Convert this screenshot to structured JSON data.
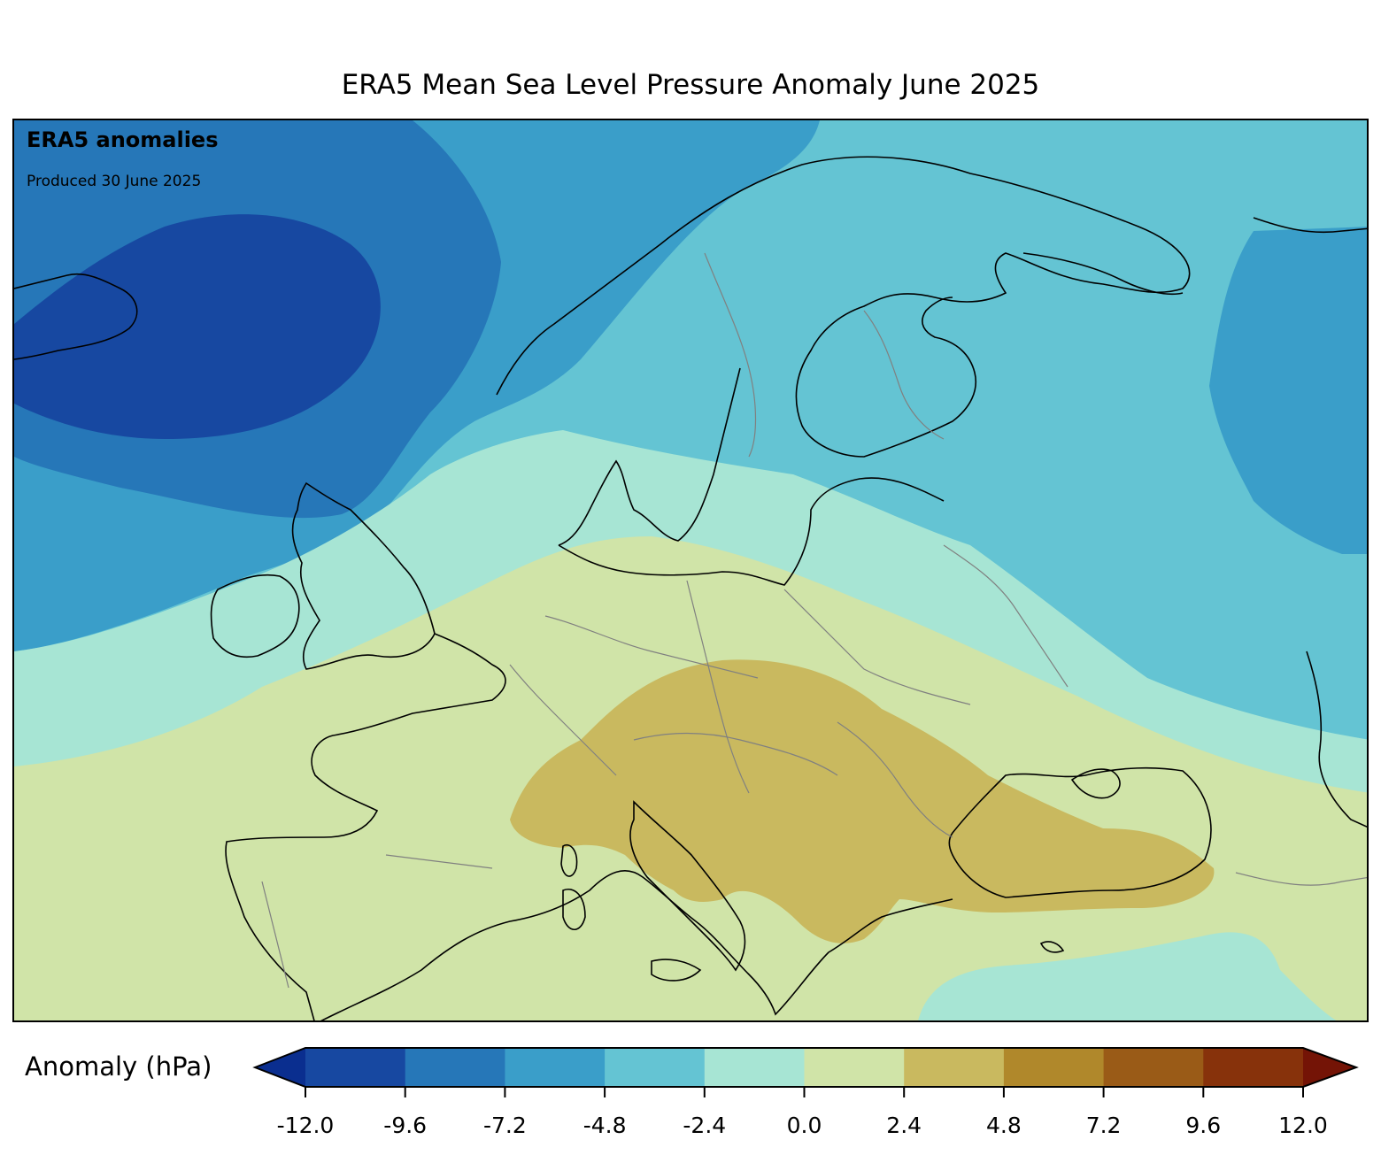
{
  "title": "ERA5 Mean Sea Level Pressure Anomaly June 2025",
  "overlay": {
    "heading": "ERA5 anomalies",
    "produced": "Produced 30 June 2025"
  },
  "colorbar": {
    "label": "Anomaly (hPa)",
    "ticks": [
      "-12.0",
      "-9.6",
      "-7.2",
      "-4.8",
      "-2.4",
      "0.0",
      "2.4",
      "4.8",
      "7.2",
      "9.6",
      "12.0"
    ],
    "colors": [
      "#0a2e8f",
      "#1748a1",
      "#2677b8",
      "#3a9ec9",
      "#64c4d3",
      "#a7e5d4",
      "#d0e4a8",
      "#c9b95f",
      "#b0882b",
      "#9a5b17",
      "#87320b",
      "#741406"
    ]
  },
  "map_data": {
    "region": "Europe",
    "variable": "Mean sea level pressure anomaly",
    "units": "hPa",
    "features": [
      {
        "name": "Iceland low",
        "anomaly_range": "-12.0 to -9.6"
      },
      {
        "name": "Central and southeastern Europe high",
        "anomaly_range": "2.4 to 4.8"
      },
      {
        "name": "Western Russia low",
        "anomaly_range": "-7.2 to -4.8"
      }
    ]
  }
}
